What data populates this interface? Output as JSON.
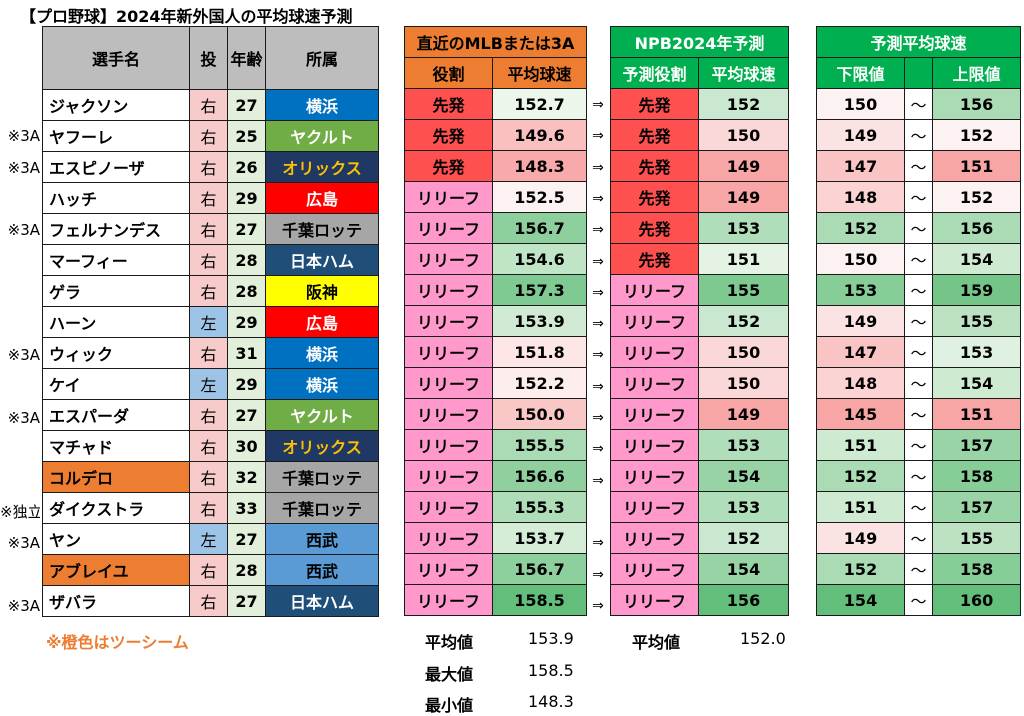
{
  "title": "【プロ野球】2024年新外国人の平均球速予測",
  "left_headers": {
    "name": "選手名",
    "throw": "投",
    "age": "年齢",
    "team": "所属"
  },
  "mlb_headers": {
    "title": "直近のMLBまたは3A",
    "role": "役割",
    "speed": "平均球速"
  },
  "npb_headers": {
    "title": "NPB2024年予測",
    "role": "予測役割",
    "speed": "平均球速"
  },
  "range_headers": {
    "title": "予測平均球速",
    "low": "下限値",
    "high": "上限値"
  },
  "arrow_symbol": "⇒",
  "tilde_symbol": "〜",
  "players": [
    {
      "note": "",
      "name": "ジャクソン",
      "throw": "右",
      "age": "27",
      "team": "横浜",
      "mlb_role": "先発",
      "mlb_speed": "152.7",
      "arrow": true,
      "npb_role": "先発",
      "npb_speed": "152",
      "low": "150",
      "high": "156"
    },
    {
      "note": "※3A",
      "name": "ヤフーレ",
      "throw": "右",
      "age": "25",
      "team": "ヤクルト",
      "mlb_role": "先発",
      "mlb_speed": "149.6",
      "arrow": true,
      "npb_role": "先発",
      "npb_speed": "150",
      "low": "149",
      "high": "152"
    },
    {
      "note": "※3A",
      "name": "エスピノーザ",
      "throw": "右",
      "age": "26",
      "team": "オリックス",
      "mlb_role": "先発",
      "mlb_speed": "148.3",
      "arrow": true,
      "npb_role": "先発",
      "npb_speed": "149",
      "low": "147",
      "high": "151"
    },
    {
      "note": "",
      "name": "ハッチ",
      "throw": "右",
      "age": "29",
      "team": "広島",
      "mlb_role": "リリーフ",
      "mlb_speed": "152.5",
      "arrow": true,
      "npb_role": "先発",
      "npb_speed": "149",
      "low": "148",
      "high": "152"
    },
    {
      "note": "※3A",
      "name": "フェルナンデス",
      "throw": "右",
      "age": "27",
      "team": "千葉ロッテ",
      "mlb_role": "リリーフ",
      "mlb_speed": "156.7",
      "arrow": true,
      "npb_role": "先発",
      "npb_speed": "153",
      "low": "152",
      "high": "156"
    },
    {
      "note": "",
      "name": "マーフィー",
      "throw": "右",
      "age": "28",
      "team": "日本ハム",
      "mlb_role": "リリーフ",
      "mlb_speed": "154.6",
      "arrow": true,
      "npb_role": "先発",
      "npb_speed": "151",
      "low": "150",
      "high": "154"
    },
    {
      "note": "",
      "name": "ゲラ",
      "throw": "右",
      "age": "28",
      "team": "阪神",
      "mlb_role": "リリーフ",
      "mlb_speed": "157.3",
      "arrow": true,
      "npb_role": "リリーフ",
      "npb_speed": "155",
      "low": "153",
      "high": "159"
    },
    {
      "note": "",
      "name": "ハーン",
      "throw": "左",
      "age": "29",
      "team": "広島",
      "mlb_role": "リリーフ",
      "mlb_speed": "153.9",
      "arrow": true,
      "npb_role": "リリーフ",
      "npb_speed": "152",
      "low": "149",
      "high": "155"
    },
    {
      "note": "※3A",
      "name": "ウィック",
      "throw": "右",
      "age": "31",
      "team": "横浜",
      "mlb_role": "リリーフ",
      "mlb_speed": "151.8",
      "arrow": true,
      "npb_role": "リリーフ",
      "npb_speed": "150",
      "low": "147",
      "high": "153"
    },
    {
      "note": "",
      "name": "ケイ",
      "throw": "左",
      "age": "29",
      "team": "横浜",
      "mlb_role": "リリーフ",
      "mlb_speed": "152.2",
      "arrow": true,
      "npb_role": "リリーフ",
      "npb_speed": "150",
      "low": "148",
      "high": "154"
    },
    {
      "note": "※3A",
      "name": "エスパーダ",
      "throw": "右",
      "age": "27",
      "team": "ヤクルト",
      "mlb_role": "リリーフ",
      "mlb_speed": "150.0",
      "arrow": true,
      "npb_role": "リリーフ",
      "npb_speed": "149",
      "low": "145",
      "high": "151"
    },
    {
      "note": "",
      "name": "マチャド",
      "throw": "右",
      "age": "30",
      "team": "オリックス",
      "mlb_role": "リリーフ",
      "mlb_speed": "155.5",
      "arrow": true,
      "npb_role": "リリーフ",
      "npb_speed": "153",
      "low": "151",
      "high": "157"
    },
    {
      "note": "",
      "name": "コルデロ",
      "throw": "右",
      "age": "32",
      "team": "千葉ロッテ",
      "mlb_role": "リリーフ",
      "mlb_speed": "156.6",
      "arrow": true,
      "npb_role": "リリーフ",
      "npb_speed": "154",
      "low": "152",
      "high": "158",
      "two_seam": true
    },
    {
      "note": "※独立",
      "name": "ダイクストラ",
      "throw": "右",
      "age": "33",
      "team": "千葉ロッテ",
      "mlb_role": "リリーフ",
      "mlb_speed": "155.3",
      "arrow": false,
      "npb_role": "リリーフ",
      "npb_speed": "153",
      "low": "151",
      "high": "157"
    },
    {
      "note": "※3A",
      "name": "ヤン",
      "throw": "左",
      "age": "27",
      "team": "西武",
      "mlb_role": "リリーフ",
      "mlb_speed": "153.7",
      "arrow": true,
      "npb_role": "リリーフ",
      "npb_speed": "152",
      "low": "149",
      "high": "155"
    },
    {
      "note": "",
      "name": "アブレイユ",
      "throw": "右",
      "age": "28",
      "team": "西武",
      "mlb_role": "リリーフ",
      "mlb_speed": "156.7",
      "arrow": true,
      "npb_role": "リリーフ",
      "npb_speed": "154",
      "low": "152",
      "high": "158",
      "two_seam": true
    },
    {
      "note": "※3A",
      "name": "ザバラ",
      "throw": "右",
      "age": "27",
      "team": "日本ハム",
      "mlb_role": "リリーフ",
      "mlb_speed": "158.5",
      "arrow": true,
      "npb_role": "リリーフ",
      "npb_speed": "156",
      "low": "154",
      "high": "160"
    }
  ],
  "team_colors": {
    "横浜": {
      "bg": "#0070c0",
      "fg": "#ffffff"
    },
    "ヤクルト": {
      "bg": "#70ad47",
      "fg": "#ffffff"
    },
    "オリックス": {
      "bg": "#1f3864",
      "fg": "#ffc000"
    },
    "広島": {
      "bg": "#ff0000",
      "fg": "#ffffff"
    },
    "千葉ロッテ": {
      "bg": "#a6a6a6",
      "fg": "#000000"
    },
    "日本ハム": {
      "bg": "#1f4e79",
      "fg": "#ffffff"
    },
    "阪神": {
      "bg": "#ffff00",
      "fg": "#000000"
    },
    "西武": {
      "bg": "#5b9bd5",
      "fg": "#000000"
    }
  },
  "role_colors": {
    "先発": "#ff5050",
    "リリーフ": "#ff99cc"
  },
  "legend": "※橙色はツーシーム",
  "mlb_stats": {
    "avg_label": "平均値",
    "avg": "153.9",
    "max_label": "最大値",
    "max": "158.5",
    "min_label": "最小値",
    "min": "148.3"
  },
  "npb_stats": {
    "avg_label": "平均値",
    "avg": "152.0"
  }
}
